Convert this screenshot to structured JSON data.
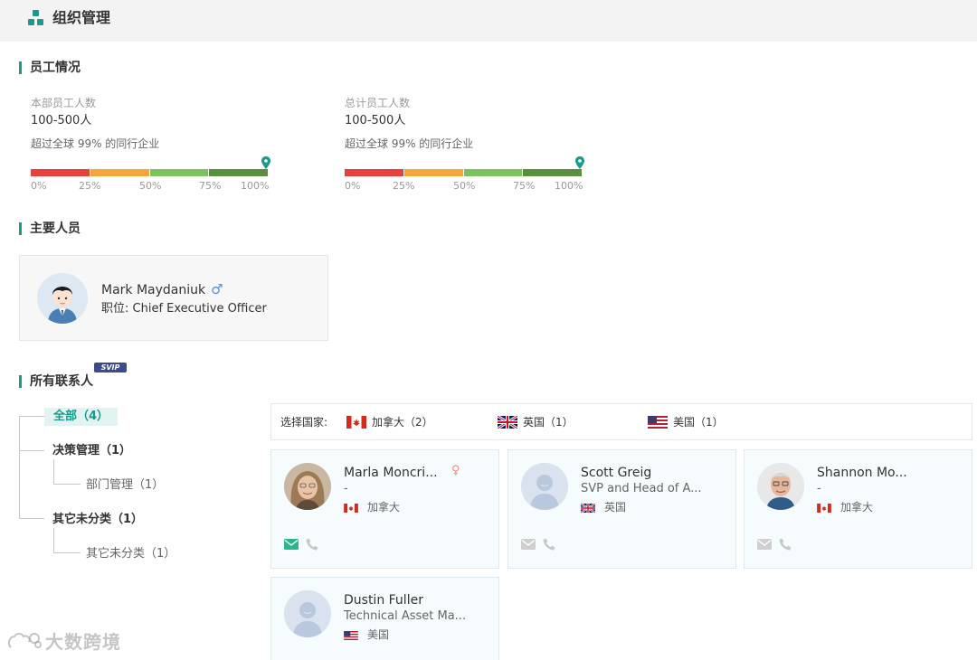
{
  "header": {
    "title": "组织管理",
    "icon": "org-chart-icon"
  },
  "employees": {
    "section_title": "员工情况",
    "dept": {
      "label": "本部员工人数",
      "value": "100-500人",
      "note": "超过全球 99% 的同行企业",
      "percentile": 99
    },
    "total": {
      "label": "总计员工人数",
      "value": "100-500人",
      "note": "超过全球 99% 的同行企业",
      "percentile": 99
    },
    "ticks": [
      "0%",
      "25%",
      "50%",
      "75%",
      "100%"
    ],
    "colors": [
      "#e8403a",
      "#f5a63a",
      "#7cc35f",
      "#5a8f3d"
    ]
  },
  "key_people": {
    "section_title": "主要人员",
    "person": {
      "name": "Mark Maydaniuk",
      "gender_icon": "♂",
      "role": "职位: Chief Executive Officer"
    }
  },
  "contacts": {
    "section_title": "所有联系人",
    "badge": "SVIP",
    "tree": {
      "all": "全部（4）",
      "decision": "决策管理（1）",
      "dept_mgmt": "部门管理（1）",
      "other": "其它未分类（1）",
      "other_sub": "其它未分类（1）"
    },
    "country_filter": {
      "label": "选择国家:",
      "options": [
        {
          "name": "加拿大（2）",
          "flag": "canada"
        },
        {
          "name": "英国（1）",
          "flag": "uk"
        },
        {
          "name": "美国（1）",
          "flag": "usa"
        }
      ]
    },
    "cards": [
      {
        "name": "Marla Moncri...",
        "title": "-",
        "country": "加拿大",
        "gender_icon": "♀"
      },
      {
        "name": "Scott Greig",
        "title": "SVP and Head of A...",
        "country": "英国"
      },
      {
        "name": "Shannon Mo...",
        "title": "-",
        "country": "加拿大"
      },
      {
        "name": "Dustin Fuller",
        "title": "Technical Asset Ma...",
        "country": "美国"
      }
    ]
  },
  "watermark": "大数跨境",
  "accent_color": "#1a9a8a"
}
